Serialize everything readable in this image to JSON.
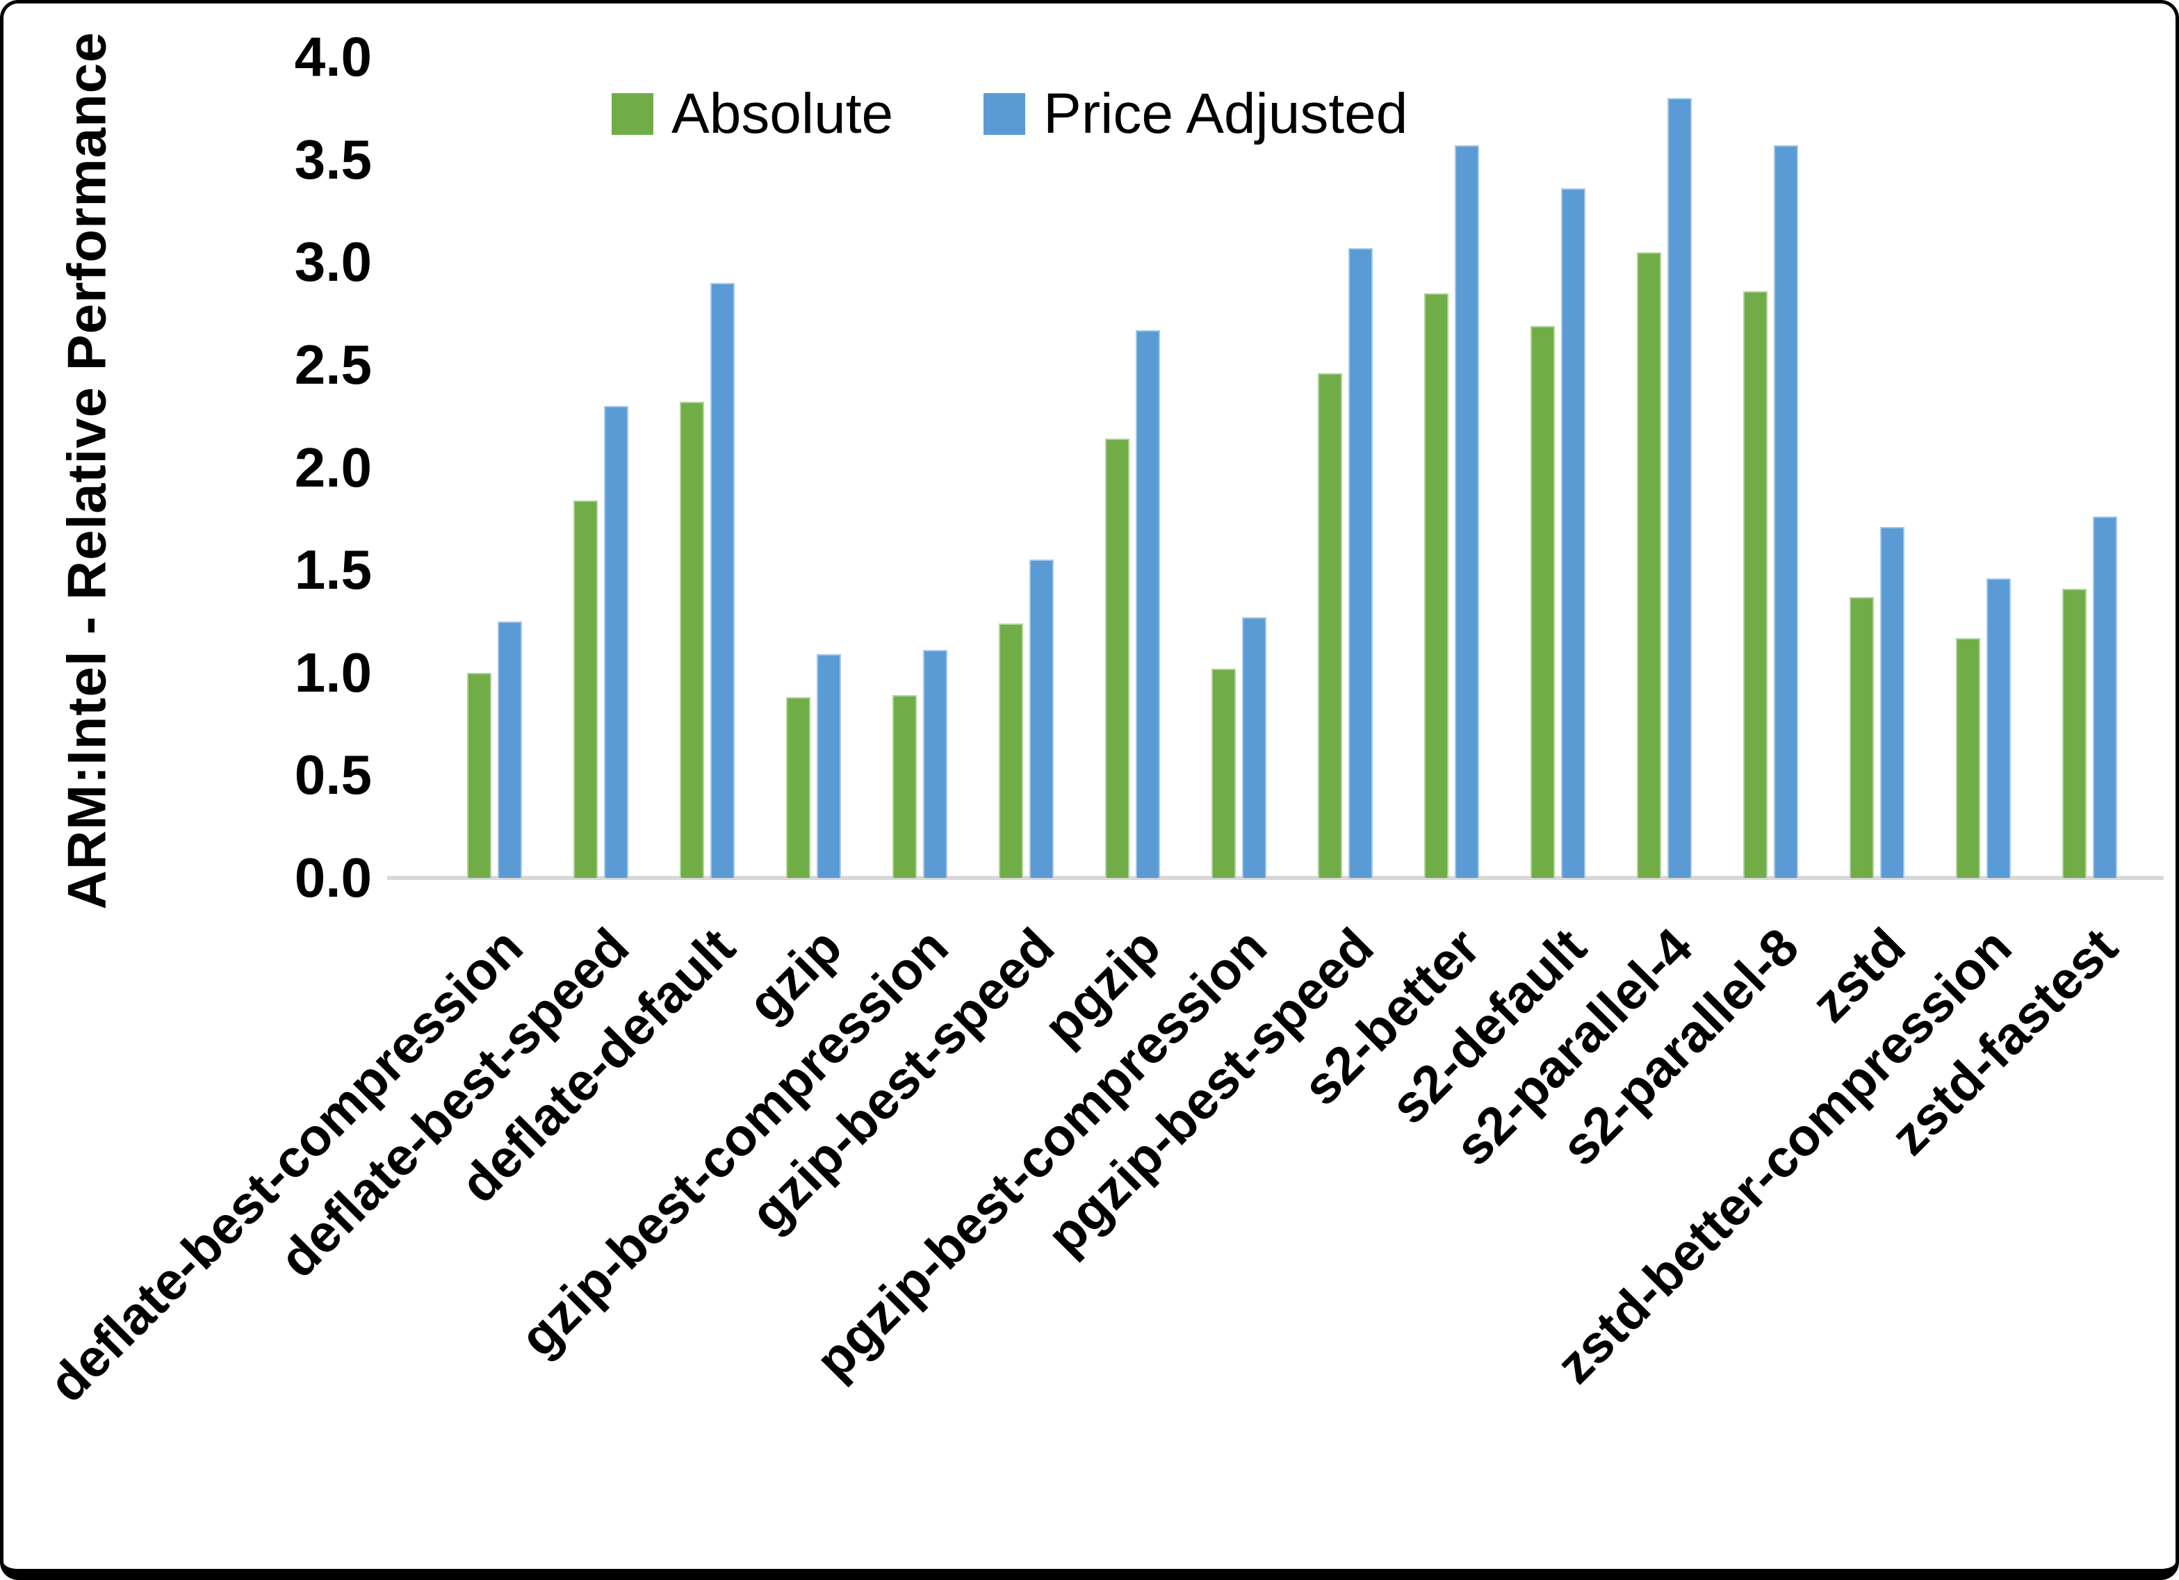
{
  "y_axis": {
    "title": "ARM:Intel - Relative Performance",
    "ticks": [
      "4.0",
      "3.5",
      "3.0",
      "2.5",
      "2.0",
      "1.5",
      "1.0",
      "0.5",
      "0.0"
    ]
  },
  "legend": [
    {
      "label": "Absolute",
      "color": "#70AD47"
    },
    {
      "label": "Price Adjusted",
      "color": "#5B9BD5"
    }
  ],
  "colors": {
    "absolute_green": "#70AD47",
    "price_adjusted_blue": "#5B9BD5",
    "axis_line_gray": "#D9D9D9",
    "frame_black": "#000000"
  },
  "chart_data": {
    "type": "bar",
    "title": "",
    "xlabel": "",
    "ylabel": "ARM:Intel - Relative Performance",
    "ylim": [
      0.0,
      4.0
    ],
    "ytick_step": 0.5,
    "grid": false,
    "legend_position": "top-center",
    "categories": [
      "deflate-best-compression",
      "deflate-best-speed",
      "deflate-default",
      "gzip",
      "gzip-best-compression",
      "gzip-best-speed",
      "pgzip",
      "pgzip-best-compression",
      "pgzip-best-speed",
      "s2-better",
      "s2-default",
      "s2-parallel-4",
      "s2-parallel-8",
      "zstd",
      "zstd-better-compression",
      "zstd-fastest"
    ],
    "series": [
      {
        "name": "Absolute",
        "color": "#70AD47",
        "values": [
          1.0,
          1.84,
          2.32,
          0.88,
          0.89,
          1.24,
          2.14,
          1.02,
          2.46,
          2.85,
          2.69,
          3.05,
          2.86,
          1.37,
          1.17,
          1.41
        ]
      },
      {
        "name": "Price Adjusted",
        "color": "#5B9BD5",
        "values": [
          1.25,
          2.3,
          2.9,
          1.09,
          1.11,
          1.55,
          2.67,
          1.27,
          3.07,
          3.57,
          3.36,
          3.8,
          3.57,
          1.71,
          1.46,
          1.76
        ]
      }
    ]
  }
}
